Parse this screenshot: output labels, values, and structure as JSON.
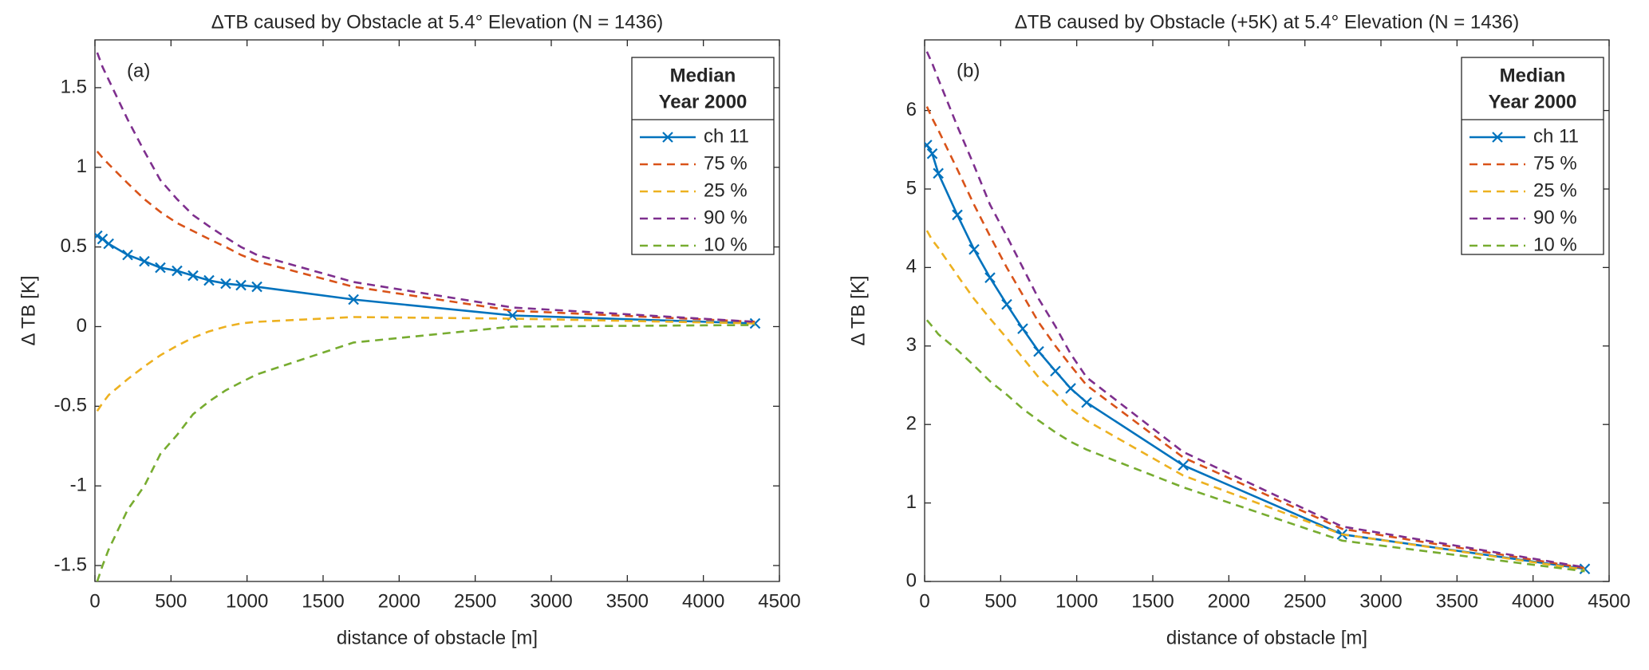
{
  "chart_data": [
    {
      "type": "line",
      "title": "ΔTB caused by Obstacle at 5.4° Elevation (N = 1436)",
      "annotation": "(a)",
      "x_label": "distance of obstacle [m]",
      "y_label": "Δ TB [K]",
      "legend_title": [
        "Median",
        "Year 2000"
      ],
      "legend": "upper right",
      "x": [
        15,
        50,
        90,
        215,
        325,
        430,
        540,
        645,
        750,
        860,
        960,
        1065,
        1700,
        2745,
        4340
      ],
      "xlim": [
        0,
        4500
      ],
      "xticks": [
        0,
        500,
        1000,
        1500,
        2000,
        2500,
        3000,
        3500,
        4000,
        4500
      ],
      "ylim": [
        -1.6,
        1.8
      ],
      "yticks": [
        -1.5,
        -1,
        -0.5,
        0,
        0.5,
        1,
        1.5
      ],
      "series": [
        {
          "name": "ch 11",
          "color": "#0072BD",
          "marker": "x",
          "dashed": false,
          "values": [
            0.57,
            0.55,
            0.52,
            0.45,
            0.41,
            0.37,
            0.35,
            0.32,
            0.29,
            0.27,
            0.26,
            0.25,
            0.17,
            0.07,
            0.02
          ]
        },
        {
          "name": "75 %",
          "color": "#D95319",
          "dashed": true,
          "values": [
            1.1,
            1.06,
            1.02,
            0.9,
            0.8,
            0.72,
            0.65,
            0.6,
            0.55,
            0.5,
            0.45,
            0.41,
            0.25,
            0.1,
            0.03
          ]
        },
        {
          "name": "25 %",
          "color": "#EDB120",
          "dashed": true,
          "values": [
            -0.53,
            -0.48,
            -0.43,
            -0.33,
            -0.25,
            -0.18,
            -0.12,
            -0.07,
            -0.03,
            0,
            0.02,
            0.03,
            0.06,
            0.05,
            0.02
          ]
        },
        {
          "name": "90 %",
          "color": "#7E2F8E",
          "dashed": true,
          "values": [
            1.72,
            1.63,
            1.55,
            1.3,
            1.1,
            0.92,
            0.8,
            0.7,
            0.63,
            0.56,
            0.5,
            0.45,
            0.28,
            0.12,
            0.03
          ]
        },
        {
          "name": "10 %",
          "color": "#77AC30",
          "dashed": true,
          "values": [
            -1.6,
            -1.5,
            -1.4,
            -1.15,
            -1.0,
            -0.8,
            -0.68,
            -0.55,
            -0.47,
            -0.4,
            -0.35,
            -0.3,
            -0.1,
            0,
            0.01
          ]
        }
      ]
    },
    {
      "type": "line",
      "title": "ΔTB caused by Obstacle (+5K) at 5.4° Elevation (N = 1436)",
      "annotation": "(b)",
      "x_label": "distance of obstacle [m]",
      "y_label": "Δ TB [K]",
      "legend_title": [
        "Median",
        "Year 2000"
      ],
      "legend": "upper right",
      "x": [
        15,
        50,
        90,
        215,
        325,
        430,
        540,
        645,
        750,
        860,
        960,
        1065,
        1700,
        2745,
        4340
      ],
      "xlim": [
        0,
        4500
      ],
      "xticks": [
        0,
        500,
        1000,
        1500,
        2000,
        2500,
        3000,
        3500,
        4000,
        4500
      ],
      "ylim": [
        0,
        6.9
      ],
      "yticks": [
        0,
        1,
        2,
        3,
        4,
        5,
        6
      ],
      "series": [
        {
          "name": "ch 11",
          "color": "#0072BD",
          "marker": "x",
          "dashed": false,
          "values": [
            5.56,
            5.45,
            5.2,
            4.67,
            4.23,
            3.87,
            3.53,
            3.22,
            2.93,
            2.68,
            2.46,
            2.28,
            1.48,
            0.6,
            0.16
          ]
        },
        {
          "name": "75 %",
          "color": "#D95319",
          "dashed": true,
          "values": [
            6.05,
            5.9,
            5.75,
            5.25,
            4.8,
            4.4,
            4.0,
            3.65,
            3.3,
            3.0,
            2.75,
            2.5,
            1.58,
            0.67,
            0.17
          ]
        },
        {
          "name": "25 %",
          "color": "#EDB120",
          "dashed": true,
          "values": [
            4.47,
            4.35,
            4.25,
            3.9,
            3.6,
            3.35,
            3.1,
            2.85,
            2.6,
            2.4,
            2.2,
            2.05,
            1.35,
            0.6,
            0.15
          ]
        },
        {
          "name": "90 %",
          "color": "#7E2F8E",
          "dashed": true,
          "values": [
            6.75,
            6.6,
            6.4,
            5.8,
            5.3,
            4.8,
            4.4,
            4.0,
            3.6,
            3.25,
            2.9,
            2.6,
            1.65,
            0.7,
            0.18
          ]
        },
        {
          "name": "10 %",
          "color": "#77AC30",
          "dashed": true,
          "values": [
            3.33,
            3.25,
            3.15,
            2.95,
            2.75,
            2.55,
            2.38,
            2.2,
            2.05,
            1.9,
            1.78,
            1.68,
            1.2,
            0.52,
            0.13
          ]
        }
      ]
    }
  ]
}
